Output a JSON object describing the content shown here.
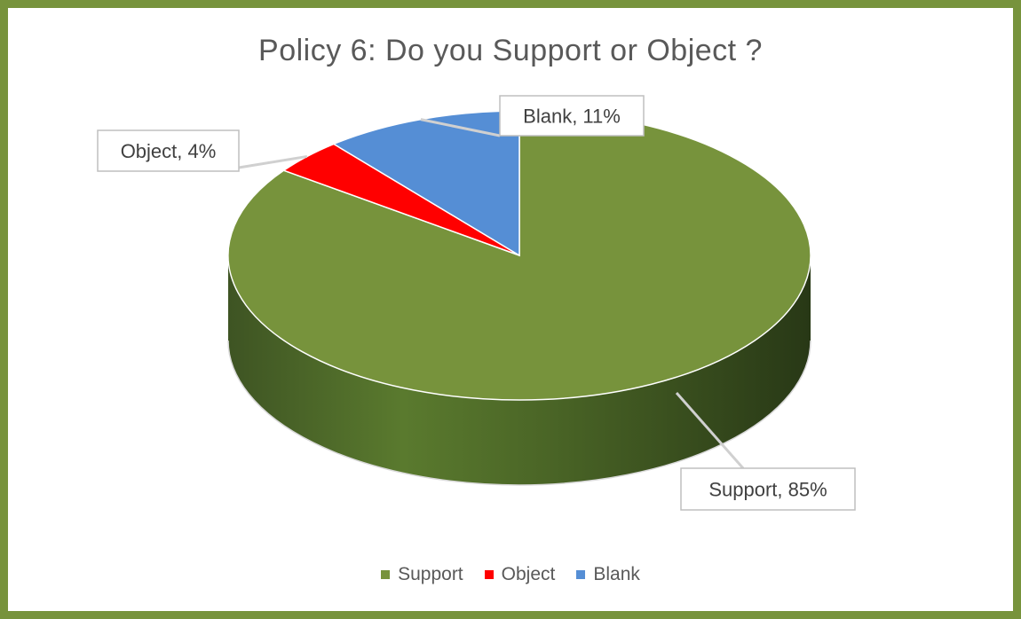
{
  "chart_data": {
    "type": "pie",
    "title": "Policy 6: Do you Support or Object ?",
    "slices": [
      {
        "label": "Support",
        "value": 85,
        "color": "#77933c",
        "data_label": "Support, 85%"
      },
      {
        "label": "Object",
        "value": 4,
        "color": "#ff0000",
        "data_label": "Object, 4%"
      },
      {
        "label": "Blank",
        "value": 11,
        "color": "#558ed5",
        "data_label": "Blank, 11%"
      }
    ],
    "legend": [
      "Support",
      "Object",
      "Blank"
    ],
    "legend_position": "bottom",
    "style": "3d-pie"
  }
}
